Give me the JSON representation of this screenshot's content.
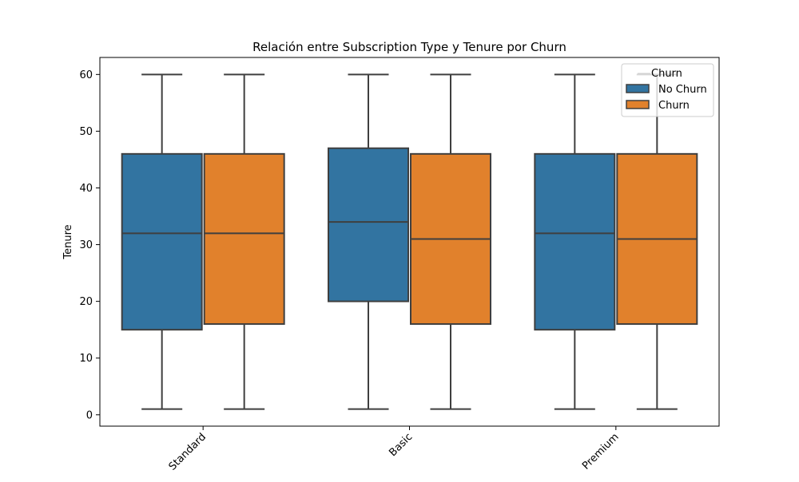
{
  "chart_data": {
    "type": "box",
    "title": "Relación entre Subscription Type y Tenure por Churn",
    "xlabel": "",
    "ylabel": "Tenure",
    "ylim": [
      -2,
      63
    ],
    "yticks": [
      0,
      10,
      20,
      30,
      40,
      50,
      60
    ],
    "categories": [
      "Standard",
      "Basic",
      "Premium"
    ],
    "legend": {
      "title": "Churn",
      "position": "top-right",
      "entries": [
        "No Churn",
        "Churn"
      ]
    },
    "series": [
      {
        "name": "No Churn",
        "color": "#3274a1",
        "boxes": [
          {
            "min": 1,
            "q1": 15,
            "median": 32,
            "q3": 46,
            "max": 60
          },
          {
            "min": 1,
            "q1": 20,
            "median": 34,
            "q3": 47,
            "max": 60
          },
          {
            "min": 1,
            "q1": 15,
            "median": 32,
            "q3": 46,
            "max": 60
          }
        ]
      },
      {
        "name": "Churn",
        "color": "#e1812c",
        "boxes": [
          {
            "min": 1,
            "q1": 16,
            "median": 32,
            "q3": 46,
            "max": 60
          },
          {
            "min": 1,
            "q1": 16,
            "median": 31,
            "q3": 46,
            "max": 60
          },
          {
            "min": 1,
            "q1": 16,
            "median": 31,
            "q3": 46,
            "max": 60
          }
        ]
      }
    ],
    "grid": false
  }
}
